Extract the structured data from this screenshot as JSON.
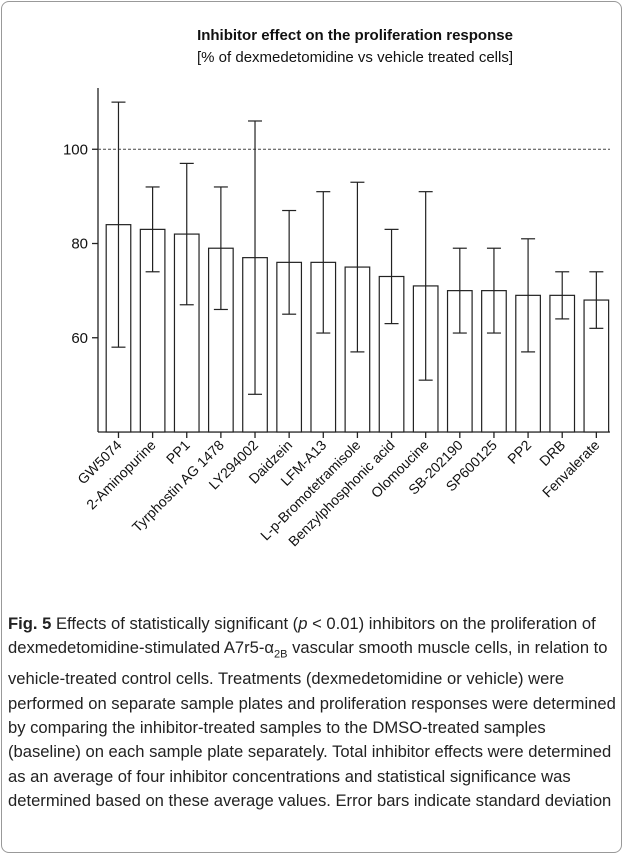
{
  "chart_data": {
    "type": "bar",
    "title": "Inhibitor effect on the proliferation response",
    "subtitle": "[% of dexmedetomidine vs vehicle treated cells]",
    "categories": [
      "GW5074",
      "2-Aminopurine",
      "PP1",
      "Tyrphostin AG 1478",
      "LY294002",
      "Daidzein",
      "LFM-A13",
      "L-p-Bromotetramisole",
      "Benzylphosphonic acid",
      "Olomoucine",
      "SB-202190",
      "SP600125",
      "PP2",
      "DRB",
      "Fenvalerate"
    ],
    "values": [
      84,
      83,
      82,
      79,
      77,
      76,
      76,
      75,
      73,
      71,
      70,
      70,
      69,
      69,
      68
    ],
    "errors": [
      26,
      9,
      15,
      13,
      29,
      11,
      15,
      18,
      10,
      20,
      9,
      9,
      12,
      5,
      6
    ],
    "color": "#ffffff",
    "ylim": [
      40,
      113
    ],
    "yticks": [
      60,
      80,
      100
    ],
    "reference_line": 100
  },
  "caption": {
    "label": "Fig. 5",
    "parts": [
      "Effects of statistically significant (",
      "p",
      " < 0.01) inhibitors on the proliferation of dexmedetomidine-stimulated A7r5-α",
      "2B",
      " vascular smooth muscle cells, in relation to vehicle-treated control cells. Treatments (dexmedetomidine or vehicle) were performed on separate sample plates and proliferation responses were determined by comparing the inhibitor-treated samples to the DMSO-treated samples (baseline) on each sample plate separately. Total inhibitor effects were determined as an average of four inhibitor concentrations and statistical significance was determined based on these average values. Error bars indicate standard deviation"
    ]
  }
}
